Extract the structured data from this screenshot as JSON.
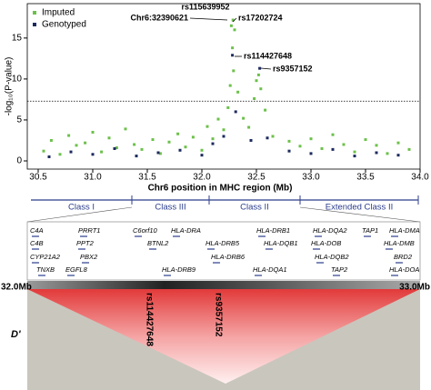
{
  "chart_data": {
    "type": "scatter",
    "xlabel": "Chr6 position in MHC region (Mb)",
    "ylabel": "-log₁₀(P-value)",
    "xlim": [
      30.4,
      34.0
    ],
    "ylim": [
      -1,
      19.2
    ],
    "xticks": [
      {
        "value": 30.5,
        "label": "30.5"
      },
      {
        "value": 31,
        "label": "31.0"
      },
      {
        "value": 31.5,
        "label": "31.5"
      },
      {
        "value": 32,
        "label": "32.0"
      },
      {
        "value": 32.5,
        "label": "32.5"
      },
      {
        "value": 33,
        "label": "33.0"
      },
      {
        "value": 33.5,
        "label": "33.5"
      },
      {
        "value": 34,
        "label": "34.0"
      }
    ],
    "yticks": [
      0,
      5,
      10,
      15
    ],
    "threshold": 7.3,
    "legend": "top-left",
    "series": [
      {
        "name": "Imputed",
        "color": "#6cc04a",
        "x": [
          30.55,
          30.62,
          30.7,
          30.78,
          30.85,
          30.93,
          31.0,
          31.08,
          31.15,
          31.22,
          31.3,
          31.38,
          31.45,
          31.55,
          31.62,
          31.7,
          31.78,
          31.85,
          31.92,
          32.0,
          32.05,
          32.1,
          32.15,
          32.2,
          32.24,
          32.26,
          32.27,
          32.28,
          32.29,
          32.285,
          32.3,
          32.33,
          32.38,
          32.43,
          32.48,
          32.5,
          32.52,
          32.54,
          32.58,
          32.65,
          32.8,
          32.9,
          33.0,
          33.1,
          33.2,
          33.3,
          33.4,
          33.5,
          33.6,
          33.7,
          33.8,
          33.9
        ],
        "values": [
          1.2,
          2.5,
          0.8,
          3.1,
          1.9,
          2.2,
          3.5,
          1.1,
          2.8,
          1.6,
          3.9,
          2.0,
          1.4,
          2.6,
          0.9,
          2.3,
          3.3,
          1.7,
          2.9,
          1.3,
          4.2,
          2.7,
          5.1,
          3.8,
          6.5,
          9.2,
          16.5,
          13.8,
          11.0,
          17.2,
          16.0,
          8.4,
          5.2,
          4.1,
          7.6,
          9.8,
          10.5,
          8.8,
          6.2,
          3.0,
          2.4,
          1.8,
          2.7,
          1.5,
          3.2,
          2.0,
          1.1,
          2.6,
          1.9,
          0.9,
          2.2,
          1.4
        ]
      },
      {
        "name": "Genotyped",
        "color": "#1c2a5e",
        "x": [
          30.6,
          30.8,
          31.0,
          31.2,
          31.4,
          31.6,
          31.8,
          32.0,
          32.1,
          32.2,
          32.28,
          32.31,
          32.45,
          32.53,
          32.6,
          32.8,
          33.0,
          33.2,
          33.4,
          33.6,
          33.8
        ],
        "values": [
          0.5,
          1.1,
          0.8,
          1.5,
          0.6,
          1.0,
          1.3,
          0.7,
          2.1,
          3.0,
          12.9,
          6.0,
          2.5,
          11.3,
          2.8,
          1.2,
          0.9,
          1.4,
          0.6,
          1.0,
          0.7
        ]
      }
    ],
    "annotations": [
      "rs115639952",
      "Chr6:32390621",
      "rs17202724",
      "rs114427648",
      "rs9357152"
    ]
  },
  "region_map": {
    "classes": [
      "Class I",
      "Class III",
      "Class II",
      "Extended Class II"
    ]
  },
  "genes": [
    "C4A",
    "PRRT1",
    "C6orf10",
    "HLA-DRA",
    "HLA-DRB1",
    "HLA-DQA2",
    "TAP1",
    "HLA-DMA",
    "C4B",
    "PPT2",
    "BTNL2",
    "HLA-DRB5",
    "HLA-DQB1",
    "HLA-DOB",
    "HLA-DMB",
    "CYP21A2",
    "PBX2",
    "HLA-DRB6",
    "HLA-DQB2",
    "BRD2",
    "TNXB",
    "EGFL8",
    "HLA-DRB9",
    "HLA-DQA1",
    "TAP2",
    "HLA-DOA"
  ],
  "ld_plot": {
    "left_label": "32.0Mb",
    "right_label": "33.0Mb",
    "y_label": "D'",
    "snp_labels": [
      "rs114427648",
      "rs9357152"
    ]
  }
}
